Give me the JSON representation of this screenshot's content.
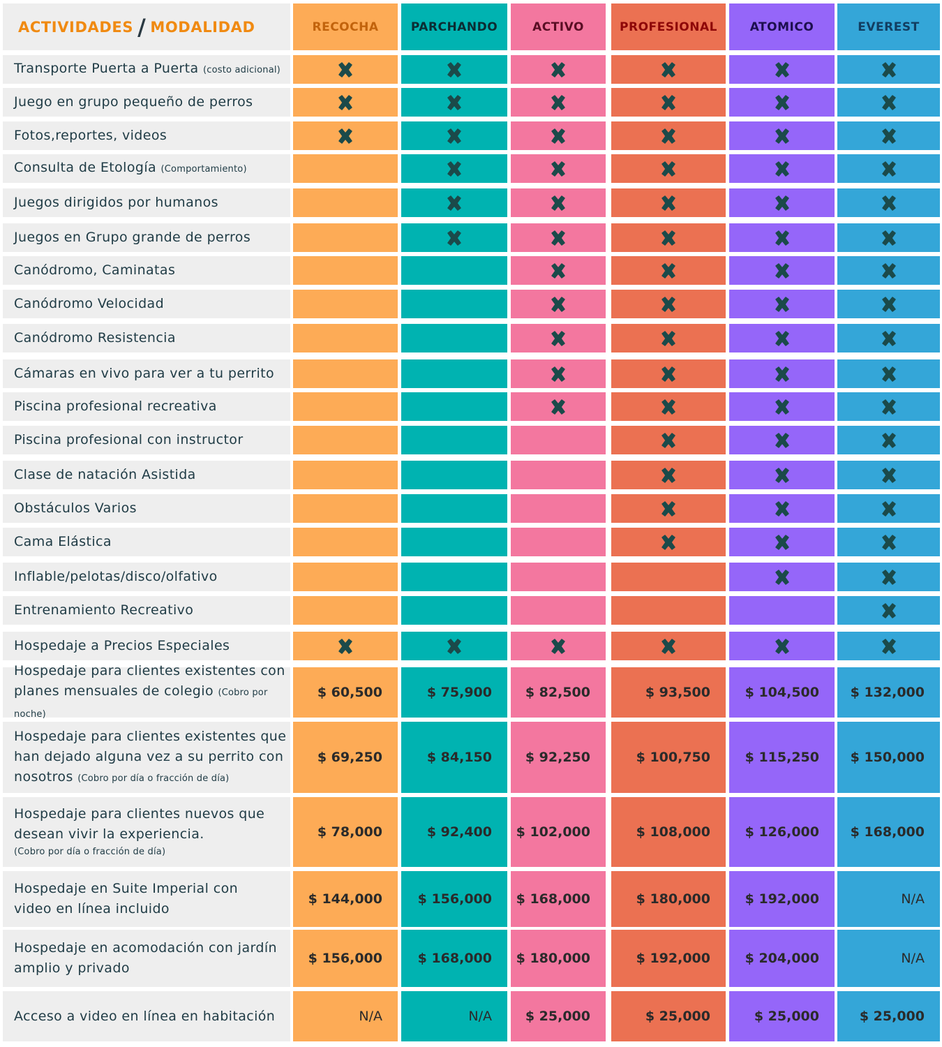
{
  "header": {
    "activities": "ACTIVIDADES",
    "slash": "/",
    "modality": "MODALIDAD",
    "plans": [
      {
        "name": "RECOCHA",
        "color": "#fdab56",
        "text_color": "#c2630c"
      },
      {
        "name": "PARCHANDO",
        "color": "#00b3b1",
        "text_color": "#0b2d33"
      },
      {
        "name": "ACTIVO",
        "color": "#f3779f",
        "text_color": "#5a0e24"
      },
      {
        "name": "PROFESIONAL",
        "color": "#eb7152",
        "text_color": "#8e0708"
      },
      {
        "name": "ATOMICO",
        "color": "#9566f9",
        "text_color": "#1d0f4f"
      },
      {
        "name": "EVEREST",
        "color": "#34a6d8",
        "text_color": "#123e61"
      }
    ]
  },
  "activities": [
    {
      "label": "Transporte Puerta a Puerta",
      "note": "(costo adicional)",
      "marks": [
        true,
        true,
        true,
        true,
        true,
        true
      ]
    },
    {
      "label": "Juego en grupo pequeño de perros",
      "note": "",
      "marks": [
        true,
        true,
        true,
        true,
        true,
        true
      ]
    },
    {
      "label": "Fotos,reportes, videos",
      "note": "",
      "marks": [
        true,
        true,
        true,
        true,
        true,
        true
      ]
    },
    {
      "label": "Consulta de Etología",
      "note": "(Comportamiento)",
      "marks": [
        false,
        true,
        true,
        true,
        true,
        true
      ]
    },
    {
      "label": "Juegos dirigidos por humanos",
      "note": "",
      "marks": [
        false,
        true,
        true,
        true,
        true,
        true
      ]
    },
    {
      "label": "Juegos en Grupo grande de perros",
      "note": "",
      "marks": [
        false,
        true,
        true,
        true,
        true,
        true
      ]
    },
    {
      "label": "Canódromo, Caminatas",
      "note": "",
      "marks": [
        false,
        false,
        true,
        true,
        true,
        true
      ]
    },
    {
      "label": "Canódromo Velocidad",
      "note": "",
      "marks": [
        false,
        false,
        true,
        true,
        true,
        true
      ]
    },
    {
      "label": "Canódromo Resistencia",
      "note": "",
      "marks": [
        false,
        false,
        true,
        true,
        true,
        true
      ]
    },
    {
      "label": "Cámaras en vivo para ver a tu perrito",
      "note": "",
      "marks": [
        false,
        false,
        true,
        true,
        true,
        true
      ]
    },
    {
      "label": "Piscina profesional recreativa",
      "note": "",
      "marks": [
        false,
        false,
        true,
        true,
        true,
        true
      ]
    },
    {
      "label": "Piscina profesional con instructor",
      "note": "",
      "marks": [
        false,
        false,
        false,
        true,
        true,
        true
      ]
    },
    {
      "label": "Clase de natación Asistida",
      "note": "",
      "marks": [
        false,
        false,
        false,
        true,
        true,
        true
      ]
    },
    {
      "label": "Obstáculos Varios",
      "note": "",
      "marks": [
        false,
        false,
        false,
        true,
        true,
        true
      ]
    },
    {
      "label": "Cama Elástica",
      "note": "",
      "marks": [
        false,
        false,
        false,
        true,
        true,
        true
      ]
    },
    {
      "label": "Inflable/pelotas/disco/olfativo",
      "note": "",
      "marks": [
        false,
        false,
        false,
        false,
        true,
        true
      ]
    },
    {
      "label": "Entrenamiento Recreativo",
      "note": "",
      "marks": [
        false,
        false,
        false,
        false,
        false,
        true
      ]
    },
    {
      "label": "Hospedaje a Precios Especiales",
      "note": "",
      "marks": [
        true,
        true,
        true,
        true,
        true,
        true
      ]
    }
  ],
  "pricing": [
    {
      "lines": [
        "Hospedaje para clientes existentes con",
        "planes mensuales de colegio"
      ],
      "note": "(Cobro por noche)",
      "note_inline": true,
      "prices": [
        "$ 60,500",
        "$ 75,900",
        "$ 82,500",
        "$ 93,500",
        "$ 104,500",
        "$ 132,000"
      ]
    },
    {
      "lines": [
        "Hospedaje para clientes existentes que",
        "han dejado alguna vez a su perrito con",
        "nosotros"
      ],
      "note": "(Cobro por día o fracción de día)",
      "note_inline": true,
      "prices": [
        "$ 69,250",
        "$ 84,150",
        "$ 92,250",
        "$ 100,750",
        "$ 115,250",
        "$ 150,000"
      ]
    },
    {
      "lines": [
        "Hospedaje para clientes nuevos que",
        "desean vivir la experiencia."
      ],
      "note": "(Cobro por día o fracción de día)",
      "note_inline": false,
      "prices": [
        "$ 78,000",
        "$ 92,400",
        "$ 102,000",
        "$ 108,000",
        "$ 126,000",
        "$ 168,000"
      ]
    },
    {
      "lines": [
        "Hospedaje en Suite Imperial con",
        "video en línea incluido"
      ],
      "note": "",
      "note_inline": true,
      "prices": [
        "$ 144,000",
        "$ 156,000",
        "$ 168,000",
        "$ 180,000",
        "$ 192,000",
        "N/A"
      ]
    },
    {
      "lines": [
        "Hospedaje en acomodación con jardín",
        "amplio y privado"
      ],
      "note": "",
      "note_inline": true,
      "prices": [
        "$ 156,000",
        "$ 168,000",
        "$ 180,000",
        "$ 192,000",
        "$ 204,000",
        "N/A"
      ]
    },
    {
      "lines": [
        "Acceso a video en línea en habitación"
      ],
      "note": "",
      "note_inline": true,
      "prices": [
        "N/A",
        "N/A",
        "$ 25,000",
        "$ 25,000",
        "$ 25,000",
        "$ 25,000"
      ]
    }
  ],
  "icons": {
    "check": "x-mark-icon",
    "check_color": "#1b4a4a"
  }
}
